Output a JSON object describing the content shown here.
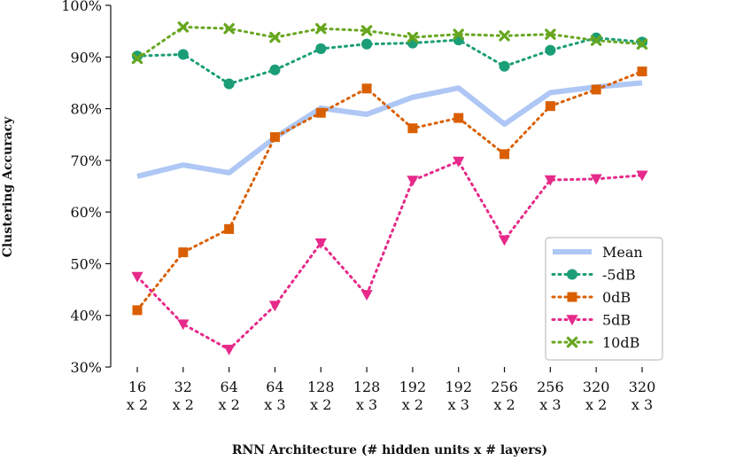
{
  "chart_data": {
    "type": "line",
    "title": "",
    "xlabel": "RNN Architecture (# hidden units x # layers)",
    "ylabel": "Clustering Accuracy",
    "ylim": [
      30,
      100
    ],
    "yticks": [
      "30%",
      "40%",
      "50%",
      "60%",
      "70%",
      "80%",
      "90%",
      "100%"
    ],
    "grid": false,
    "legend_position": "bottom-right",
    "categories": [
      {
        "units": "16",
        "layers": "x 2"
      },
      {
        "units": "32",
        "layers": "x 2"
      },
      {
        "units": "64",
        "layers": "x 2"
      },
      {
        "units": "64",
        "layers": "x 3"
      },
      {
        "units": "128",
        "layers": "x 2"
      },
      {
        "units": "128",
        "layers": "x 3"
      },
      {
        "units": "192",
        "layers": "x 2"
      },
      {
        "units": "192",
        "layers": "x 3"
      },
      {
        "units": "256",
        "layers": "x 2"
      },
      {
        "units": "256",
        "layers": "x 3"
      },
      {
        "units": "320",
        "layers": "x 2"
      },
      {
        "units": "320",
        "layers": "x 3"
      }
    ],
    "series": [
      {
        "name": "Mean",
        "color": "#aec7f5",
        "marker": "none",
        "style": "solid-thick",
        "values": [
          66.9,
          69.1,
          67.6,
          74.4,
          80.1,
          78.9,
          82.2,
          84.0,
          77.0,
          83.1,
          84.2,
          85.0
        ]
      },
      {
        "name": "-5dB",
        "color": "#1b9e77",
        "marker": "circle",
        "style": "dotted",
        "values": [
          90.2,
          90.5,
          84.8,
          87.5,
          91.6,
          92.5,
          92.7,
          93.3,
          88.2,
          91.3,
          93.7,
          92.9
        ]
      },
      {
        "name": "0dB",
        "color": "#d95f02",
        "marker": "square",
        "style": "dotted",
        "values": [
          41.0,
          52.2,
          56.7,
          74.5,
          79.2,
          83.9,
          76.2,
          78.2,
          71.2,
          80.5,
          83.7,
          87.2
        ]
      },
      {
        "name": "5dB",
        "color": "#e7298a",
        "marker": "triangle-down",
        "style": "dotted",
        "values": [
          47.5,
          38.3,
          33.4,
          41.9,
          54.0,
          44.0,
          66.1,
          69.8,
          54.6,
          66.2,
          66.4,
          67.1
        ]
      },
      {
        "name": "10dB",
        "color": "#66a61e",
        "marker": "x",
        "style": "dotted",
        "values": [
          89.7,
          95.8,
          95.5,
          93.8,
          95.5,
          95.1,
          93.8,
          94.4,
          94.1,
          94.4,
          93.2,
          92.5
        ]
      }
    ]
  }
}
